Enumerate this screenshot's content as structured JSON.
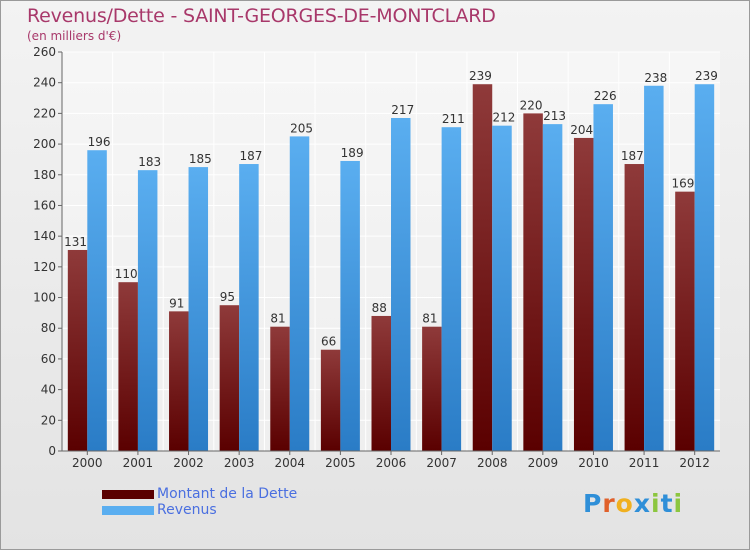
{
  "title": "Revenus/Dette - SAINT-GEORGES-DE-MONTCLARD",
  "subtitle": "(en milliers d'€)",
  "brand": {
    "text": "Proxiti",
    "letter_colors": [
      "#2f8fd8",
      "#e0602a",
      "#f0b020",
      "#2f8fd8",
      "#8cc63f",
      "#2f8fd8",
      "#8cc63f"
    ]
  },
  "colors": {
    "dette_dark": "#5a0000",
    "dette_light": "#8f3a3a",
    "revenus_dark": "#2a7cc6",
    "revenus_light": "#5aaef0"
  },
  "chart_data": {
    "type": "bar",
    "categories": [
      "2000",
      "2001",
      "2002",
      "2003",
      "2004",
      "2005",
      "2006",
      "2007",
      "2008",
      "2009",
      "2010",
      "2011",
      "2012"
    ],
    "series": [
      {
        "name": "Montant de la Dette",
        "values": [
          131,
          110,
          91,
          95,
          81,
          66,
          88,
          81,
          239,
          220,
          204,
          187,
          169
        ]
      },
      {
        "name": "Revenus",
        "values": [
          196,
          183,
          185,
          187,
          205,
          189,
          217,
          211,
          212,
          213,
          226,
          238,
          239
        ]
      }
    ],
    "title": "Revenus/Dette - SAINT-GEORGES-DE-MONTCLARD",
    "ylabel": "(en milliers d'€)",
    "ylim": [
      0,
      260
    ],
    "yticks": [
      0,
      20,
      40,
      60,
      80,
      100,
      120,
      140,
      160,
      180,
      200,
      220,
      240,
      260
    ],
    "grid": true,
    "legend": "bottom-left"
  }
}
